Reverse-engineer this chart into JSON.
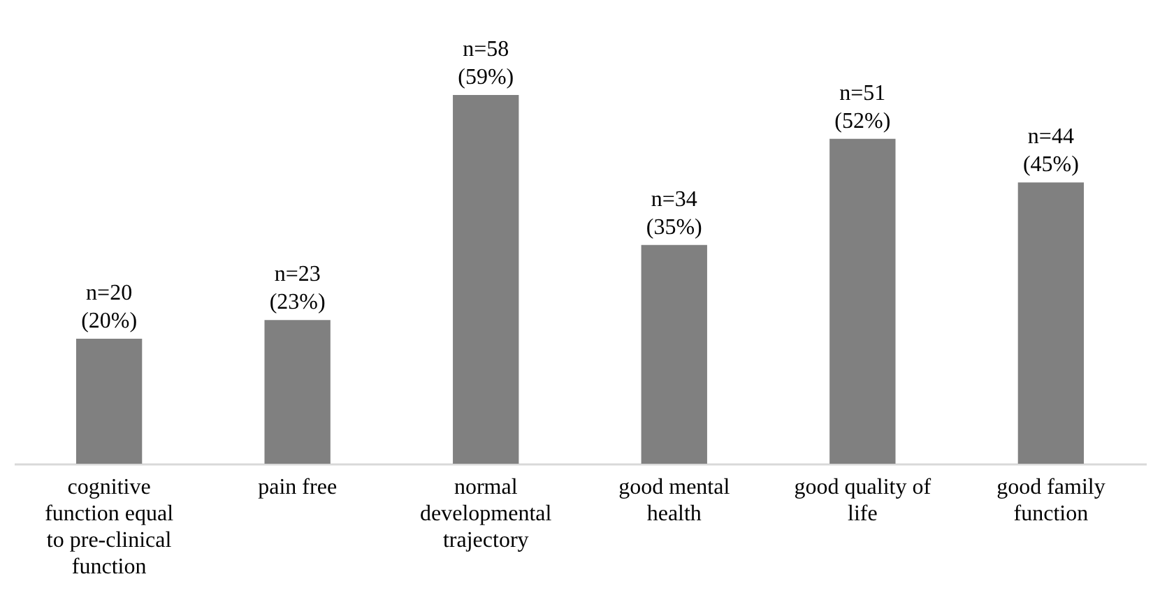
{
  "chart_data": {
    "type": "bar",
    "categories": [
      "cognitive function equal to pre-clinical function",
      "pain free",
      "normal developmental trajectory",
      "good mental health",
      "good quality of life",
      "good family function"
    ],
    "values": [
      20,
      23,
      59,
      35,
      52,
      45
    ],
    "value_labels": [
      "n=20\n(20%)",
      "n=23\n(23%)",
      "n=58\n(59%)",
      "n=34\n(35%)",
      "n=51\n(52%)",
      "n=44\n(45%)"
    ],
    "color": "#808080"
  }
}
